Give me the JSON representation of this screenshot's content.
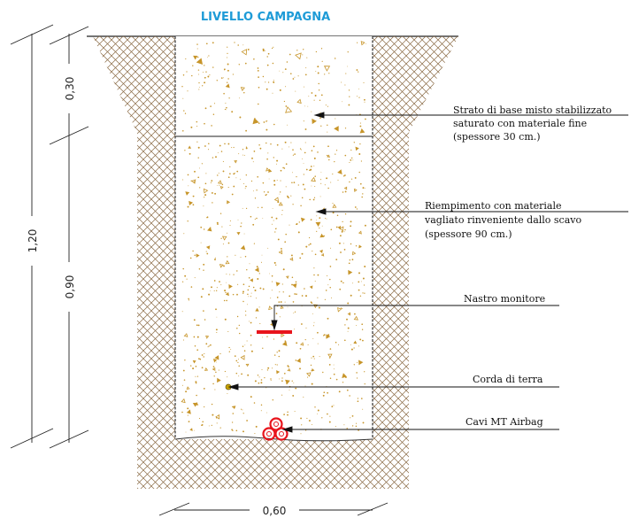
{
  "title": "LIVELLO CAMPAGNA",
  "dimensions": {
    "total_depth": "1,20",
    "top_layer": "0,30",
    "bottom_layer": "0,90",
    "width": "0,60"
  },
  "labels": {
    "base_layer": [
      "Strato di base misto stabilizzato",
      "saturato con materiale fine",
      "(spessore 30 cm.)"
    ],
    "backfill": [
      "Riempimento con materiale",
      "vagliato rinveniente dallo scavo",
      "(spessore 90 cm.)"
    ],
    "warning_tape": "Nastro monitore",
    "earth_wire": "Corda di terra",
    "cables": "Cavi MT Airbag"
  },
  "colors": {
    "title": "#1e9bd7",
    "hatch": "#8a6a44",
    "aggregate": "#c7952a",
    "warning_tape": "#e8141c",
    "cables": "#e8141c",
    "earth_wire": "#c9a400"
  }
}
